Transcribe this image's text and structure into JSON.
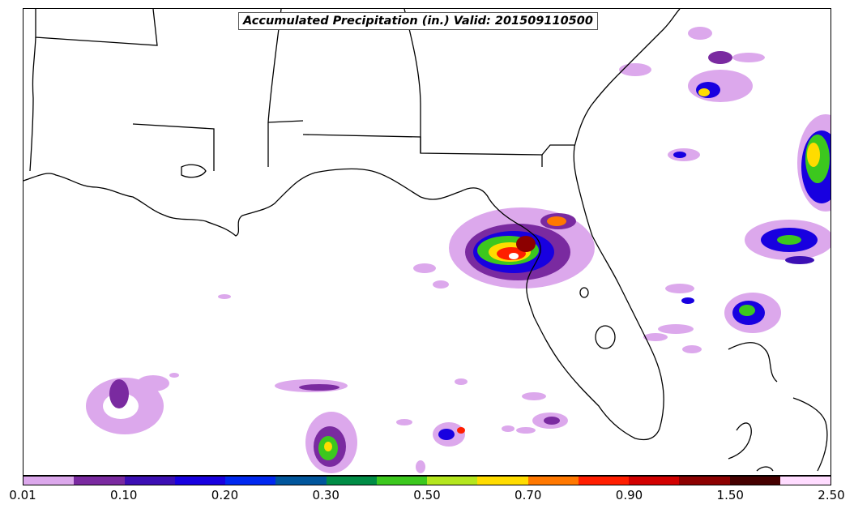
{
  "title": "Accumulated Precipitation (in.) Valid: 201509110500",
  "colorbar": {
    "colors": [
      "#dca8ec",
      "#7a2aa0",
      "#3c0fb4",
      "#1800e0",
      "#0028f0",
      "#00569c",
      "#008c46",
      "#3cc81e",
      "#b4e61e",
      "#ffdc00",
      "#ff7800",
      "#ff1e00",
      "#d20000",
      "#8c0000",
      "#460000",
      "#ffdcff"
    ],
    "tick_labels": [
      "0.01",
      "0.10",
      "0.20",
      "0.30",
      "0.50",
      "0.70",
      "0.90",
      "1.50",
      "2.50"
    ]
  },
  "map": {
    "region": "Gulf of Mexico / Florida",
    "basemap": "state-boundaries"
  }
}
